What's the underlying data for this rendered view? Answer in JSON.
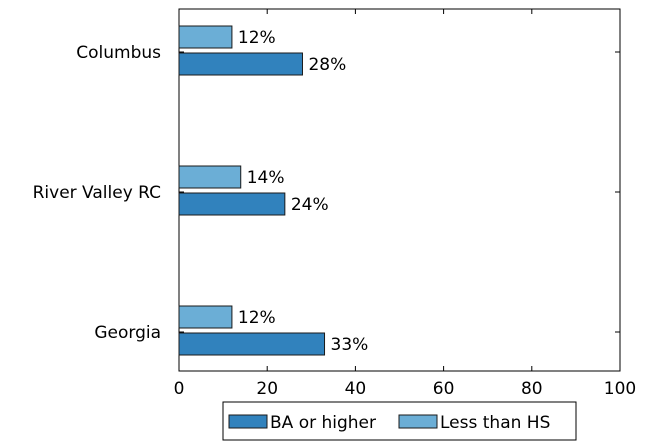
{
  "chart_data": {
    "type": "bar",
    "orientation": "horizontal",
    "categories": [
      "Columbus",
      "River Valley RC",
      "Georgia"
    ],
    "series": [
      {
        "name": "Less than HS",
        "values": [
          12,
          14,
          12
        ],
        "labels": [
          "12%",
          "14%",
          "12%"
        ],
        "color": "#6baed6"
      },
      {
        "name": "BA or higher",
        "values": [
          28,
          24,
          33
        ],
        "labels": [
          "28%",
          "24%",
          "33%"
        ],
        "color": "#3182bd"
      }
    ],
    "xlim": [
      0,
      100
    ],
    "x_ticks": [
      0,
      20,
      40,
      60,
      80,
      100
    ],
    "x_tick_labels": [
      "0",
      "20",
      "40",
      "60",
      "80",
      "100"
    ],
    "title": "",
    "xlabel": "",
    "ylabel": "",
    "grid": false,
    "legend": {
      "placement": "bottom",
      "entries": [
        {
          "label": "BA or higher",
          "color": "#3182bd"
        },
        {
          "label": "Less than HS",
          "color": "#6baed6"
        }
      ]
    }
  }
}
